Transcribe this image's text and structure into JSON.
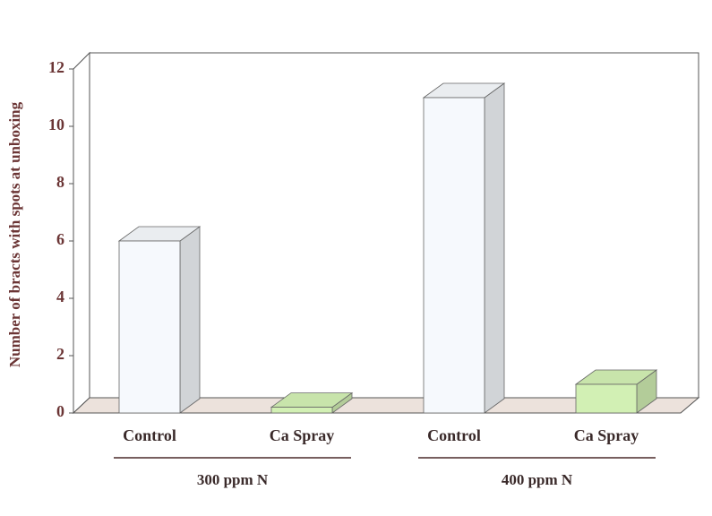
{
  "chart_data": {
    "type": "bar3d",
    "ylabel": "Number of bracts with spots at unboxing",
    "categories": [
      "Control",
      "Ca Spray",
      "Control",
      "Ca Spray"
    ],
    "groups": [
      "300 ppm N",
      "400 ppm N"
    ],
    "values": [
      6,
      0.2,
      11,
      1
    ],
    "colors": [
      "#f6f9fd",
      "#d2f0b4",
      "#f6f9fd",
      "#d2f0b4"
    ],
    "ylim": [
      0,
      12
    ],
    "yticks": [
      0,
      2,
      4,
      6,
      8,
      10,
      12
    ]
  }
}
